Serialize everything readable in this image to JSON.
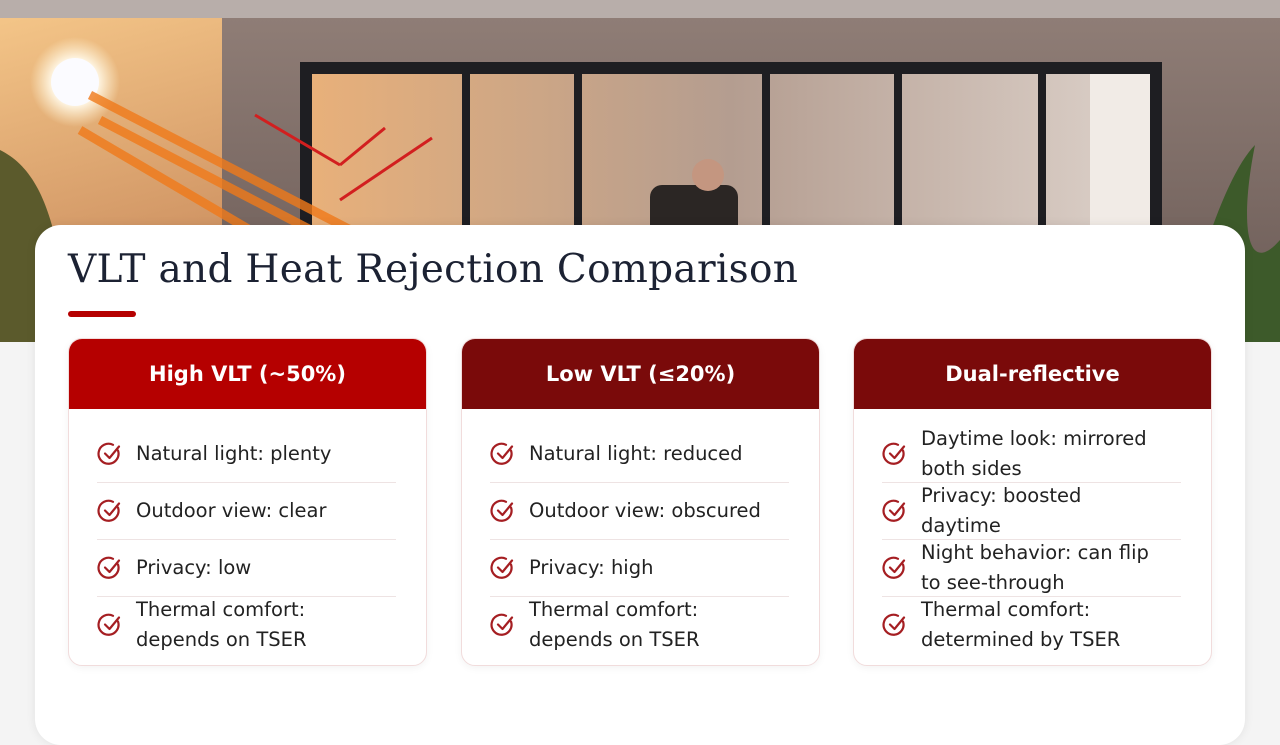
{
  "title": "VLT and Heat Rejection Comparison",
  "columns": [
    {
      "header": "High VLT (~50%)",
      "items": [
        [
          "Natural light: plenty"
        ],
        [
          "Outdoor view: clear"
        ],
        [
          "Privacy: low"
        ],
        [
          "Thermal comfort:",
          "depends on TSER"
        ]
      ]
    },
    {
      "header": "Low VLT (≤20%)",
      "items": [
        [
          "Natural light: reduced"
        ],
        [
          "Outdoor view: obscured"
        ],
        [
          "Privacy: high"
        ],
        [
          "Thermal comfort:",
          "depends on TSER"
        ]
      ]
    },
    {
      "header": "Dual-reflective",
      "items": [
        [
          "Daytime look: mirrored",
          "both sides"
        ],
        [
          "Privacy: boosted",
          "daytime"
        ],
        [
          "Night behavior: can flip",
          "to see-through"
        ],
        [
          "Thermal comfort:",
          "determined by TSER"
        ]
      ]
    }
  ]
}
